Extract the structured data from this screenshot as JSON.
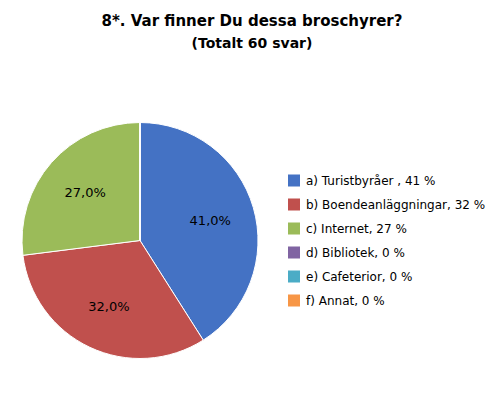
{
  "chart_data": {
    "type": "pie",
    "title": "8*. Var finner Du dessa broschyrer?",
    "subtitle": "(Totalt 60 svar)",
    "categories": [
      "a) Turistbyråer , 41 %",
      "b) Boendeanläggningar, 32 %",
      "c) Internet, 27 %",
      "d) Bibliotek, 0 %",
      "e) Cafeterior, 0 %",
      "f) Annat, 0 %"
    ],
    "values": [
      41.0,
      32.0,
      27.0,
      0.001,
      0.001,
      0.001
    ],
    "value_labels": [
      "41,0%",
      "32,0%",
      "27,0%",
      null,
      null,
      null
    ],
    "colors": [
      "#4472C4",
      "#C0504D",
      "#9BBB59",
      "#8064A2",
      "#4BACC6",
      "#F79646"
    ],
    "data_labels": true,
    "legend": "right"
  }
}
